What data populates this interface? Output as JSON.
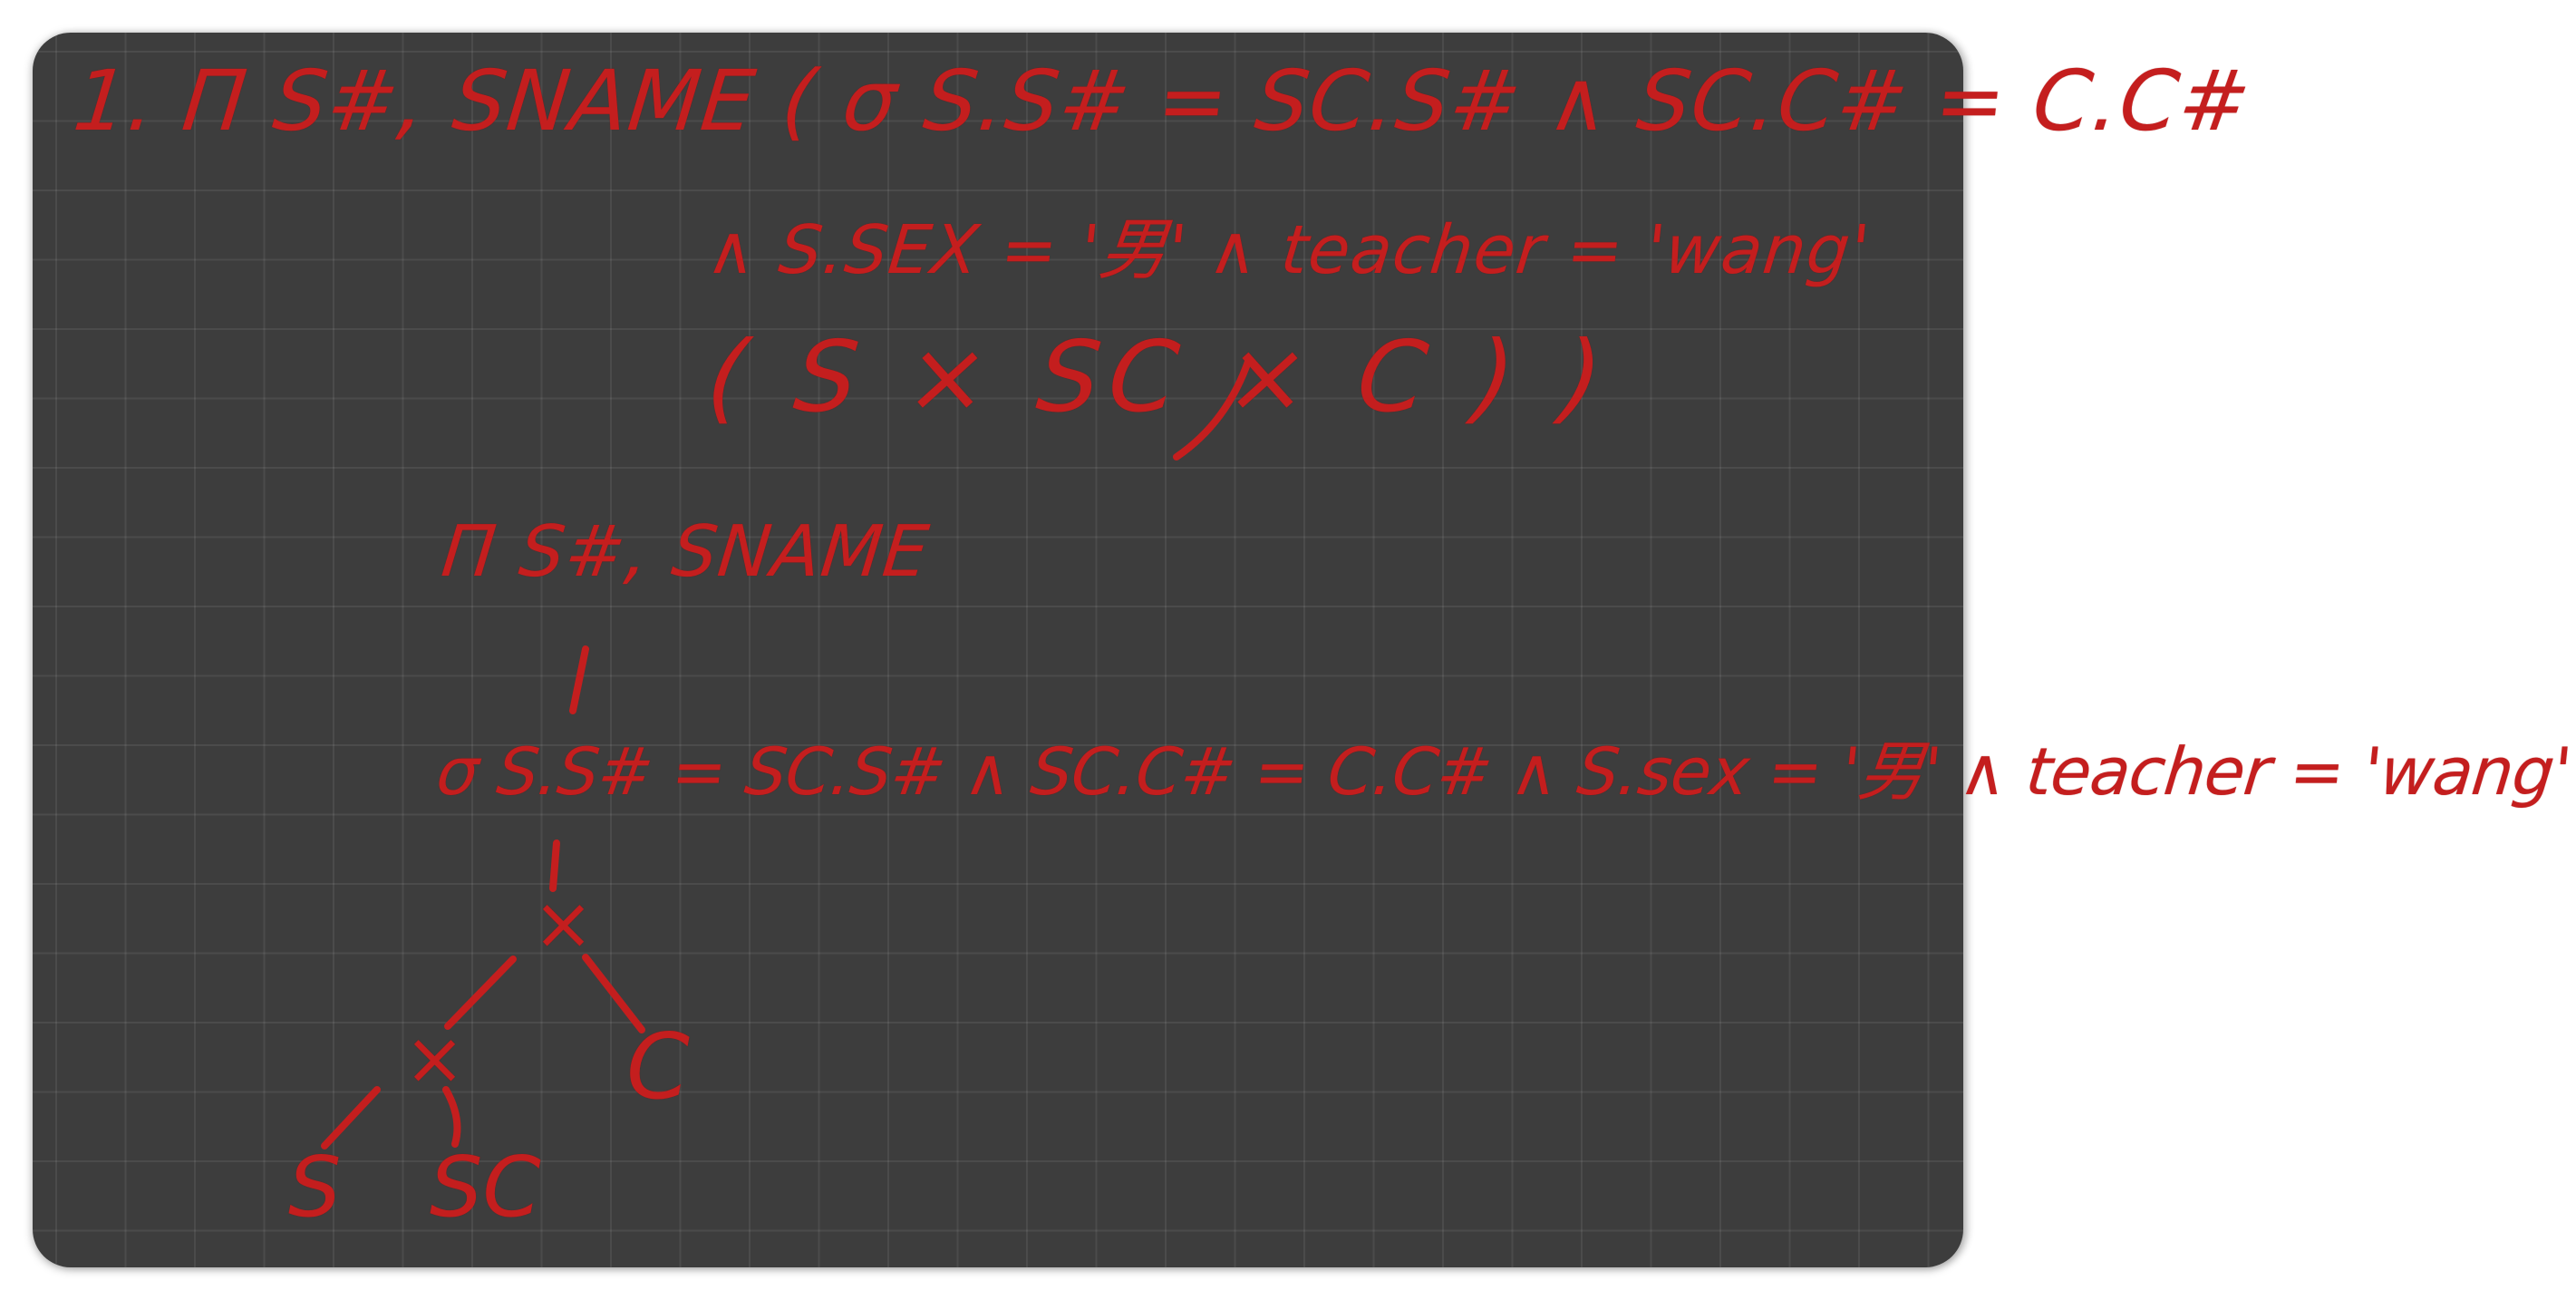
{
  "board": {
    "background_color": "#3d3d3d",
    "ink_color": "#c41e1e",
    "expression": {
      "line1": "1. Π S#, SNAME ( σ S.S# = SC.S# ∧ SC.C# = C.C#",
      "line2": "∧ S.SEX = '男' ∧ teacher = 'wang'",
      "line3": "( S × SC × C ) )"
    },
    "tree": {
      "projection": "Π S#, SNAME",
      "selection": "σ S.S# = SC.S# ∧ SC.C# = C.C# ∧ S.sex = '男' ∧ teacher = 'wang'",
      "nodes": {
        "upper_product": "×",
        "lower_product": "×",
        "leaf_c": "C",
        "leaf_s": "S",
        "leaf_sc": "SC"
      }
    }
  }
}
